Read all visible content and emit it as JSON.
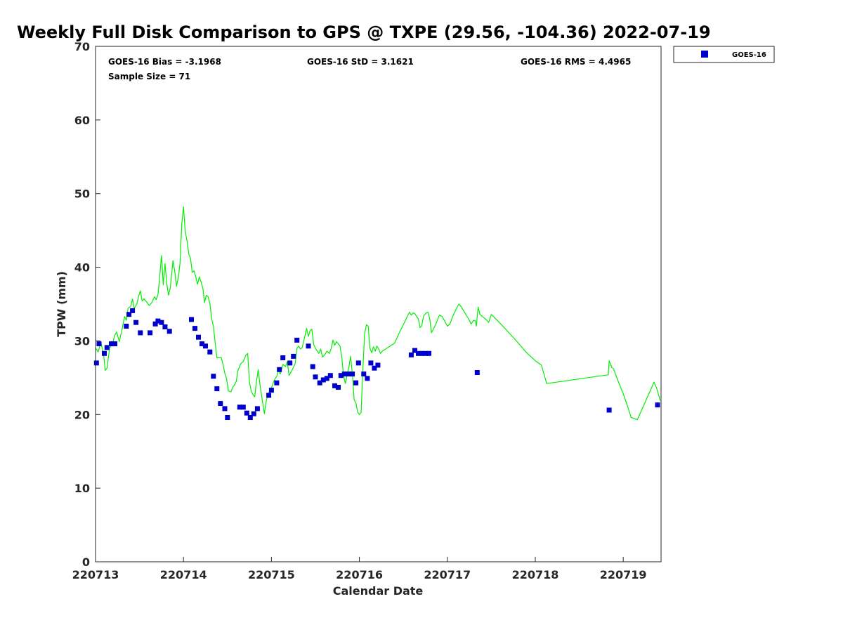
{
  "chart_data": {
    "type": "scatter",
    "title": "Weekly Full Disk Comparison to GPS @ TXPE (29.56, -104.36) 2022-07-19",
    "xlabel": "Calendar Date",
    "ylabel": "TPW (mm)",
    "xlim": [
      0,
      6.43
    ],
    "ylim": [
      0,
      70
    ],
    "x_tick_values": [
      0,
      1,
      2,
      3,
      4,
      5,
      6
    ],
    "x_tick_labels": [
      "220713",
      "220714",
      "220715",
      "220716",
      "220717",
      "220718",
      "220719"
    ],
    "y_ticks": [
      0,
      10,
      20,
      30,
      40,
      50,
      60,
      70
    ],
    "stats": {
      "bias": "GOES-16 Bias = -3.1968",
      "std": "GOES-16 StD = 3.1621",
      "rms": "GOES-16 RMS = 4.4965",
      "sample_size": "Sample Size = 71"
    },
    "legend": {
      "position": "top-right-outside",
      "entries": [
        "GOES-16"
      ]
    },
    "series": [
      {
        "name": "GOES-16",
        "marker": "square",
        "color": "#0000cc",
        "points": [
          [
            0.01,
            27.0
          ],
          [
            0.04,
            29.6
          ],
          [
            0.1,
            28.3
          ],
          [
            0.13,
            29.1
          ],
          [
            0.18,
            29.6
          ],
          [
            0.22,
            29.6
          ],
          [
            0.35,
            32.0
          ],
          [
            0.38,
            33.6
          ],
          [
            0.42,
            34.1
          ],
          [
            0.46,
            32.5
          ],
          [
            0.51,
            31.1
          ],
          [
            0.62,
            31.1
          ],
          [
            0.68,
            32.3
          ],
          [
            0.71,
            32.7
          ],
          [
            0.75,
            32.5
          ],
          [
            0.79,
            31.9
          ],
          [
            0.84,
            31.3
          ],
          [
            1.09,
            32.9
          ],
          [
            1.13,
            31.7
          ],
          [
            1.17,
            30.5
          ],
          [
            1.21,
            29.6
          ],
          [
            1.25,
            29.3
          ],
          [
            1.3,
            28.5
          ],
          [
            1.34,
            25.2
          ],
          [
            1.38,
            23.5
          ],
          [
            1.42,
            21.5
          ],
          [
            1.47,
            20.8
          ],
          [
            1.5,
            19.6
          ],
          [
            1.64,
            21.0
          ],
          [
            1.68,
            21.0
          ],
          [
            1.72,
            20.2
          ],
          [
            1.76,
            19.6
          ],
          [
            1.8,
            20.1
          ],
          [
            1.84,
            20.8
          ],
          [
            1.97,
            22.6
          ],
          [
            2.0,
            23.3
          ],
          [
            2.06,
            24.3
          ],
          [
            2.09,
            26.1
          ],
          [
            2.13,
            27.7
          ],
          [
            2.21,
            27.0
          ],
          [
            2.25,
            27.9
          ],
          [
            2.29,
            30.1
          ],
          [
            2.42,
            29.3
          ],
          [
            2.47,
            26.5
          ],
          [
            2.5,
            25.1
          ],
          [
            2.55,
            24.3
          ],
          [
            2.59,
            24.7
          ],
          [
            2.63,
            24.9
          ],
          [
            2.67,
            25.3
          ],
          [
            2.72,
            23.9
          ],
          [
            2.76,
            23.7
          ],
          [
            2.79,
            25.3
          ],
          [
            2.83,
            25.5
          ],
          [
            2.88,
            25.5
          ],
          [
            2.92,
            25.5
          ],
          [
            2.96,
            24.3
          ],
          [
            2.99,
            27.0
          ],
          [
            3.05,
            25.5
          ],
          [
            3.09,
            24.9
          ],
          [
            3.13,
            27.0
          ],
          [
            3.17,
            26.3
          ],
          [
            3.21,
            26.7
          ],
          [
            3.59,
            28.1
          ],
          [
            3.63,
            28.7
          ],
          [
            3.67,
            28.3
          ],
          [
            3.71,
            28.3
          ],
          [
            3.75,
            28.3
          ],
          [
            3.79,
            28.3
          ],
          [
            4.34,
            25.7
          ],
          [
            5.84,
            20.6
          ],
          [
            6.39,
            21.3
          ]
        ]
      },
      {
        "name": "GPS",
        "type": "line",
        "color": "#00ee00",
        "points": [
          [
            0.0,
            29.0
          ],
          [
            0.03,
            28.5
          ],
          [
            0.06,
            29.8
          ],
          [
            0.09,
            28.3
          ],
          [
            0.11,
            26.0
          ],
          [
            0.13,
            26.3
          ],
          [
            0.16,
            29.0
          ],
          [
            0.19,
            29.5
          ],
          [
            0.22,
            30.8
          ],
          [
            0.24,
            31.2
          ],
          [
            0.27,
            29.9
          ],
          [
            0.3,
            31.5
          ],
          [
            0.33,
            33.3
          ],
          [
            0.35,
            32.8
          ],
          [
            0.37,
            34.4
          ],
          [
            0.4,
            34.7
          ],
          [
            0.42,
            35.7
          ],
          [
            0.44,
            34.4
          ],
          [
            0.47,
            35.0
          ],
          [
            0.49,
            36.1
          ],
          [
            0.51,
            36.8
          ],
          [
            0.53,
            35.4
          ],
          [
            0.55,
            35.7
          ],
          [
            0.58,
            35.3
          ],
          [
            0.61,
            34.8
          ],
          [
            0.64,
            35.2
          ],
          [
            0.67,
            36.0
          ],
          [
            0.69,
            35.6
          ],
          [
            0.71,
            36.3
          ],
          [
            0.73,
            38.8
          ],
          [
            0.75,
            41.6
          ],
          [
            0.77,
            37.6
          ],
          [
            0.79,
            40.5
          ],
          [
            0.81,
            37.8
          ],
          [
            0.83,
            36.2
          ],
          [
            0.85,
            37.2
          ],
          [
            0.88,
            40.9
          ],
          [
            0.9,
            39.5
          ],
          [
            0.92,
            37.4
          ],
          [
            0.94,
            38.5
          ],
          [
            0.96,
            40.5
          ],
          [
            0.98,
            45.8
          ],
          [
            1.0,
            48.2
          ],
          [
            1.02,
            44.9
          ],
          [
            1.04,
            43.6
          ],
          [
            1.06,
            41.8
          ],
          [
            1.08,
            41.2
          ],
          [
            1.1,
            39.3
          ],
          [
            1.12,
            39.5
          ],
          [
            1.14,
            38.7
          ],
          [
            1.16,
            37.7
          ],
          [
            1.18,
            38.7
          ],
          [
            1.2,
            38.0
          ],
          [
            1.22,
            37.2
          ],
          [
            1.24,
            35.2
          ],
          [
            1.26,
            36.2
          ],
          [
            1.28,
            36.0
          ],
          [
            1.3,
            35.1
          ],
          [
            1.32,
            33.0
          ],
          [
            1.34,
            32.0
          ],
          [
            1.36,
            29.7
          ],
          [
            1.38,
            27.7
          ],
          [
            1.41,
            27.7
          ],
          [
            1.43,
            27.7
          ],
          [
            1.45,
            26.8
          ],
          [
            1.47,
            25.6
          ],
          [
            1.49,
            24.9
          ],
          [
            1.51,
            23.2
          ],
          [
            1.54,
            23.1
          ],
          [
            1.56,
            23.7
          ],
          [
            1.58,
            24.0
          ],
          [
            1.6,
            24.5
          ],
          [
            1.62,
            26.0
          ],
          [
            1.65,
            26.9
          ],
          [
            1.68,
            27.2
          ],
          [
            1.71,
            28.1
          ],
          [
            1.73,
            28.3
          ],
          [
            1.75,
            24.4
          ],
          [
            1.77,
            23.2
          ],
          [
            1.79,
            22.7
          ],
          [
            1.81,
            22.4
          ],
          [
            1.83,
            24.5
          ],
          [
            1.85,
            26.1
          ],
          [
            1.87,
            24.0
          ],
          [
            1.9,
            21.6
          ],
          [
            1.92,
            20.1
          ],
          [
            1.94,
            21.8
          ],
          [
            1.96,
            22.7
          ],
          [
            1.98,
            23.2
          ],
          [
            2.0,
            23.6
          ],
          [
            2.03,
            24.6
          ],
          [
            2.06,
            25.2
          ],
          [
            2.08,
            26.0
          ],
          [
            2.1,
            25.5
          ],
          [
            2.13,
            26.8
          ],
          [
            2.16,
            26.5
          ],
          [
            2.18,
            27.2
          ],
          [
            2.2,
            25.3
          ],
          [
            2.22,
            25.7
          ],
          [
            2.25,
            26.4
          ],
          [
            2.27,
            26.9
          ],
          [
            2.29,
            29.0
          ],
          [
            2.31,
            29.3
          ],
          [
            2.33,
            28.9
          ],
          [
            2.35,
            29.1
          ],
          [
            2.37,
            30.1
          ],
          [
            2.4,
            31.7
          ],
          [
            2.42,
            30.6
          ],
          [
            2.44,
            31.4
          ],
          [
            2.46,
            31.6
          ],
          [
            2.48,
            29.5
          ],
          [
            2.51,
            28.8
          ],
          [
            2.54,
            28.3
          ],
          [
            2.56,
            28.9
          ],
          [
            2.58,
            27.8
          ],
          [
            2.61,
            28.2
          ],
          [
            2.63,
            28.6
          ],
          [
            2.66,
            28.3
          ],
          [
            2.68,
            29.0
          ],
          [
            2.7,
            30.1
          ],
          [
            2.72,
            29.4
          ],
          [
            2.74,
            29.9
          ],
          [
            2.76,
            29.6
          ],
          [
            2.78,
            29.3
          ],
          [
            2.8,
            27.8
          ],
          [
            2.82,
            25.3
          ],
          [
            2.84,
            24.2
          ],
          [
            2.86,
            25.4
          ],
          [
            2.88,
            26.4
          ],
          [
            2.9,
            27.9
          ],
          [
            2.92,
            25.5
          ],
          [
            2.94,
            22.0
          ],
          [
            2.96,
            21.6
          ],
          [
            2.98,
            20.3
          ],
          [
            3.0,
            20.0
          ],
          [
            3.02,
            20.3
          ],
          [
            3.04,
            26.4
          ],
          [
            3.06,
            31.0
          ],
          [
            3.08,
            32.2
          ],
          [
            3.1,
            32.0
          ],
          [
            3.12,
            29.0
          ],
          [
            3.14,
            28.4
          ],
          [
            3.16,
            29.2
          ],
          [
            3.18,
            28.6
          ],
          [
            3.2,
            29.3
          ],
          [
            3.22,
            28.9
          ],
          [
            3.24,
            28.3
          ],
          [
            3.26,
            28.6
          ],
          [
            3.3,
            28.9
          ],
          [
            3.35,
            29.3
          ],
          [
            3.4,
            29.7
          ],
          [
            3.45,
            31.0
          ],
          [
            3.5,
            32.2
          ],
          [
            3.54,
            33.2
          ],
          [
            3.57,
            33.9
          ],
          [
            3.59,
            33.5
          ],
          [
            3.61,
            33.8
          ],
          [
            3.63,
            33.7
          ],
          [
            3.65,
            33.3
          ],
          [
            3.67,
            33.0
          ],
          [
            3.69,
            31.8
          ],
          [
            3.71,
            32.1
          ],
          [
            3.73,
            33.4
          ],
          [
            3.76,
            33.8
          ],
          [
            3.78,
            33.9
          ],
          [
            3.8,
            33.0
          ],
          [
            3.82,
            31.1
          ],
          [
            3.85,
            31.8
          ],
          [
            3.88,
            32.6
          ],
          [
            3.91,
            33.5
          ],
          [
            3.94,
            33.3
          ],
          [
            3.97,
            32.7
          ],
          [
            4.0,
            32.0
          ],
          [
            4.03,
            32.3
          ],
          [
            4.06,
            33.3
          ],
          [
            4.1,
            34.3
          ],
          [
            4.13,
            35.0
          ],
          [
            4.16,
            34.6
          ],
          [
            4.2,
            33.8
          ],
          [
            4.24,
            33.0
          ],
          [
            4.27,
            32.3
          ],
          [
            4.3,
            32.8
          ],
          [
            4.32,
            32.7
          ],
          [
            4.33,
            32.0
          ],
          [
            4.35,
            34.6
          ],
          [
            4.37,
            33.6
          ],
          [
            4.4,
            33.3
          ],
          [
            4.44,
            32.9
          ],
          [
            4.47,
            32.5
          ],
          [
            4.5,
            33.6
          ],
          [
            4.6,
            32.4
          ],
          [
            4.7,
            31.1
          ],
          [
            4.8,
            29.8
          ],
          [
            4.9,
            28.4
          ],
          [
            5.0,
            27.3
          ],
          [
            5.07,
            26.7
          ],
          [
            5.13,
            24.2
          ],
          [
            5.83,
            25.4
          ],
          [
            5.84,
            27.3
          ],
          [
            5.87,
            26.4
          ],
          [
            5.89,
            26.2
          ],
          [
            5.93,
            24.9
          ],
          [
            6.0,
            22.8
          ],
          [
            6.05,
            21.1
          ],
          [
            6.09,
            19.6
          ],
          [
            6.16,
            19.3
          ],
          [
            6.25,
            21.7
          ],
          [
            6.35,
            24.4
          ],
          [
            6.38,
            23.6
          ],
          [
            6.42,
            21.9
          ]
        ]
      }
    ]
  }
}
